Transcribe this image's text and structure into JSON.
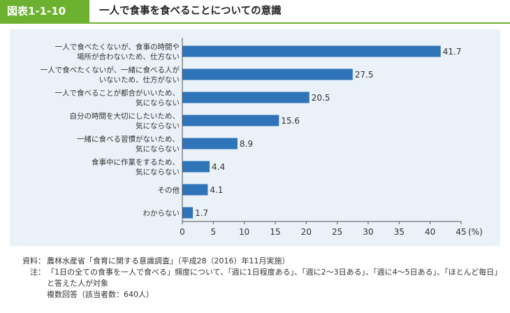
{
  "figure": {
    "number": "図表1-1-10",
    "title": "一人で食事を食べることについての意識"
  },
  "colors": {
    "accent_green": "#6cb230",
    "bar_blue": "#2f73b8",
    "panel_bg": "#eaf1f8"
  },
  "chart_data": {
    "type": "bar",
    "orientation": "horizontal",
    "categories": [
      [
        "一人で食べたくないが、食事の時間や",
        "場所が合わないため、仕方ない"
      ],
      [
        "一人で食べたくないが、一緒に食べる人が",
        "いないため、仕方がない"
      ],
      [
        "一人で食べることが都合がいいため、",
        "気にならない"
      ],
      [
        "自分の時間を大切にしたいため、",
        "気にならない"
      ],
      [
        "一緒に食べる習慣がないため、",
        "気にならない"
      ],
      [
        "食事中に作業をするため、",
        "気にならない"
      ],
      [
        "その他"
      ],
      [
        "わからない"
      ]
    ],
    "values": [
      41.7,
      27.5,
      20.5,
      15.6,
      8.9,
      4.4,
      4.1,
      1.7
    ],
    "value_labels": [
      "41.7",
      "27.5",
      "20.5",
      "15.6",
      "8.9",
      "4.4",
      "4.1",
      "1.7"
    ],
    "xlim": [
      0,
      45
    ],
    "xticks": [
      0,
      5,
      10,
      15,
      20,
      25,
      30,
      35,
      40,
      45
    ],
    "xtick_labels": [
      "0",
      "5",
      "10",
      "15",
      "20",
      "25",
      "30",
      "35",
      "40",
      "45"
    ],
    "unit_label": "(%)",
    "grid": false
  },
  "notes": {
    "source_label": "資料：",
    "source_text": "農林水産省「食育に関する意識調査」（平成28（2016）年11月実施）",
    "note_label": "注：",
    "note_text": "「1日の全ての食事を一人で食べる」頻度について、「週に1日程度ある」、「週に2～3日ある」、「週に4～5日ある」、「ほとんど毎日」と答えた人が対象",
    "multi_answer": "複数回答（該当者数：640人）"
  }
}
